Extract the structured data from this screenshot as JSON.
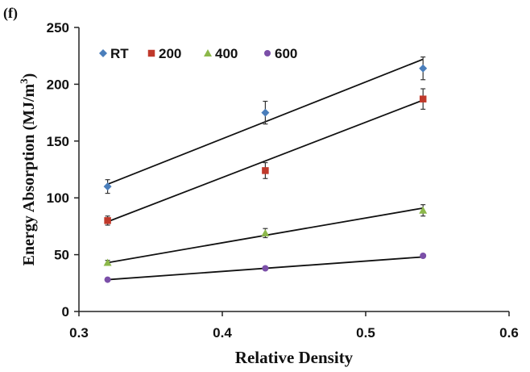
{
  "chart_data": {
    "type": "scatter",
    "panel_label": "(f)",
    "xlabel": "Relative Density",
    "ylabel_main": "Energy Absorption (MJ/m",
    "ylabel_sup": "3",
    "ylabel_close": ")",
    "xlim": [
      0.3,
      0.6
    ],
    "ylim": [
      0,
      250
    ],
    "xticks": [
      "0.3",
      "0.4",
      "0.5",
      "0.6"
    ],
    "yticks": [
      "0",
      "50",
      "100",
      "150",
      "200",
      "250"
    ],
    "grid": false,
    "legend_position": "top-left",
    "series": [
      {
        "name": "RT",
        "marker": "diamond",
        "color": "#4a7ebb",
        "x": [
          0.32,
          0.43,
          0.54
        ],
        "y": [
          110,
          175,
          214
        ],
        "err": [
          6,
          10,
          10
        ],
        "fit": [
          [
            0.32,
            112
          ],
          [
            0.54,
            222
          ]
        ]
      },
      {
        "name": "200",
        "marker": "square",
        "color": "#c0392b",
        "x": [
          0.32,
          0.43,
          0.54
        ],
        "y": [
          80,
          124,
          187
        ],
        "err": [
          4,
          7,
          9
        ],
        "fit": [
          [
            0.32,
            79
          ],
          [
            0.54,
            186
          ]
        ]
      },
      {
        "name": "400",
        "marker": "triangle",
        "color": "#8cb84a",
        "x": [
          0.32,
          0.43,
          0.54
        ],
        "y": [
          43,
          69,
          89
        ],
        "err": [
          2,
          4,
          5
        ],
        "fit": [
          [
            0.32,
            43
          ],
          [
            0.54,
            91
          ]
        ]
      },
      {
        "name": "600",
        "marker": "circle",
        "color": "#7b4fa8",
        "x": [
          0.32,
          0.43,
          0.54
        ],
        "y": [
          28,
          38,
          49
        ],
        "err": [
          1,
          1,
          1
        ],
        "fit": [
          [
            0.32,
            28
          ],
          [
            0.54,
            48
          ]
        ]
      }
    ]
  }
}
